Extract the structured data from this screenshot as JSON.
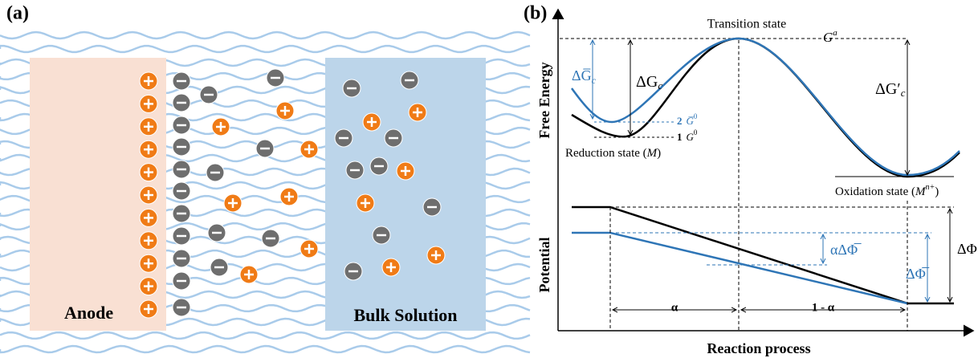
{
  "panel_a": {
    "label": "(a)",
    "anode": "Anode",
    "bulk": "Bulk Solution"
  },
  "panel_b": {
    "label": "(b)",
    "y_label_top": "Free Energy",
    "y_label_bottom": "Potential",
    "x_label": "Reaction process",
    "transition": "Transition state",
    "g_a": {
      "base": "G",
      "sup": "a"
    },
    "dg_c_bar": {
      "base": "ΔG̅",
      "sub": "c"
    },
    "dg_c": {
      "base": "ΔG",
      "sub": "c"
    },
    "dg_c_prime": {
      "base": "ΔG′",
      "sub": "c"
    },
    "level_2": {
      "num": "2",
      "base": "G̅",
      "sup": "0"
    },
    "level_1": {
      "num": "1",
      "base": "G",
      "sup": "0"
    },
    "reduction": {
      "text": "Reduction state (",
      "italic": "M",
      "end": ")"
    },
    "oxidation": {
      "text": "Oxidation state (",
      "italic": "M",
      "sup": "n+",
      "end": ")"
    },
    "alpha_dphi_bar": "αΔΦ̅",
    "dphi": "ΔΦ",
    "dphi_bar": "ΔΦ̅",
    "alpha": "α",
    "one_minus_alpha": "1 - α"
  }
}
